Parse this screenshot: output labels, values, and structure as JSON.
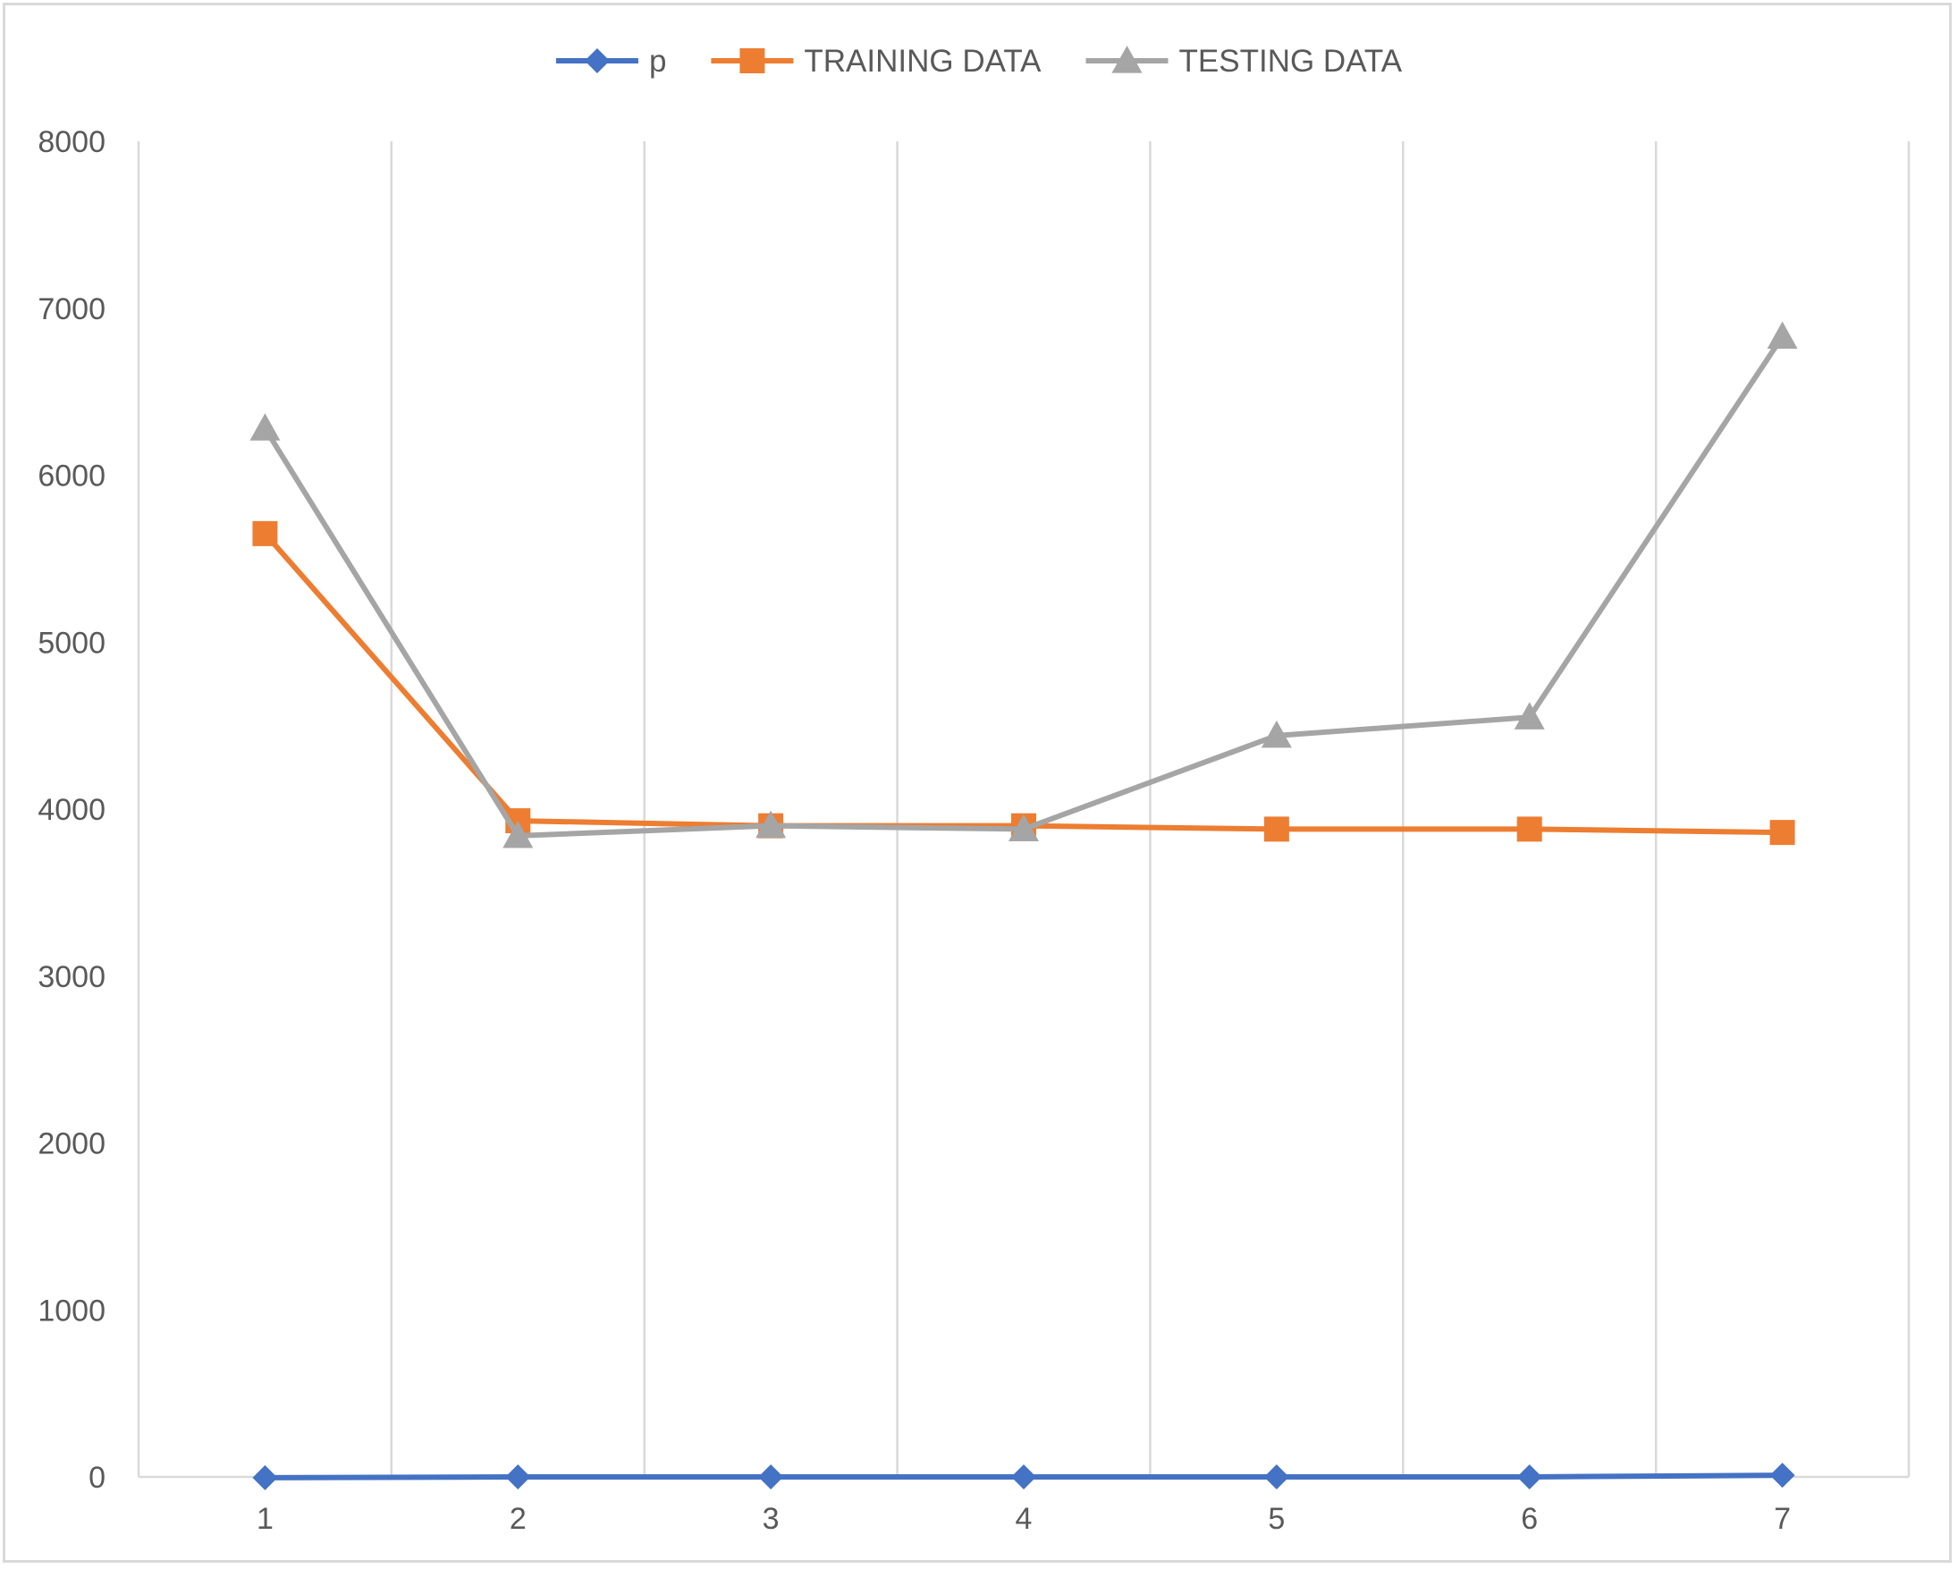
{
  "chart_data": {
    "type": "line",
    "title": "",
    "xlabel": "",
    "ylabel": "",
    "categories": [
      "1",
      "2",
      "3",
      "4",
      "5",
      "6",
      "7"
    ],
    "ylim": [
      0,
      8000
    ],
    "yticks": [
      "0",
      "1000",
      "2000",
      "3000",
      "4000",
      "5000",
      "6000",
      "7000",
      "8000"
    ],
    "grid": "vertical",
    "legend_position": "top",
    "series": [
      {
        "name": "p",
        "color": "#4472c4",
        "marker": "diamond",
        "values": [
          -5,
          0,
          0,
          0,
          0,
          0,
          10
        ]
      },
      {
        "name": "TRAINING DATA",
        "color": "#ed7d31",
        "marker": "square",
        "values": [
          5650,
          3930,
          3900,
          3900,
          3880,
          3880,
          3860
        ]
      },
      {
        "name": "TESTING DATA",
        "color": "#a5a5a5",
        "marker": "triangle",
        "values": [
          6280,
          3840,
          3900,
          3880,
          4440,
          4550,
          6830
        ]
      }
    ]
  }
}
